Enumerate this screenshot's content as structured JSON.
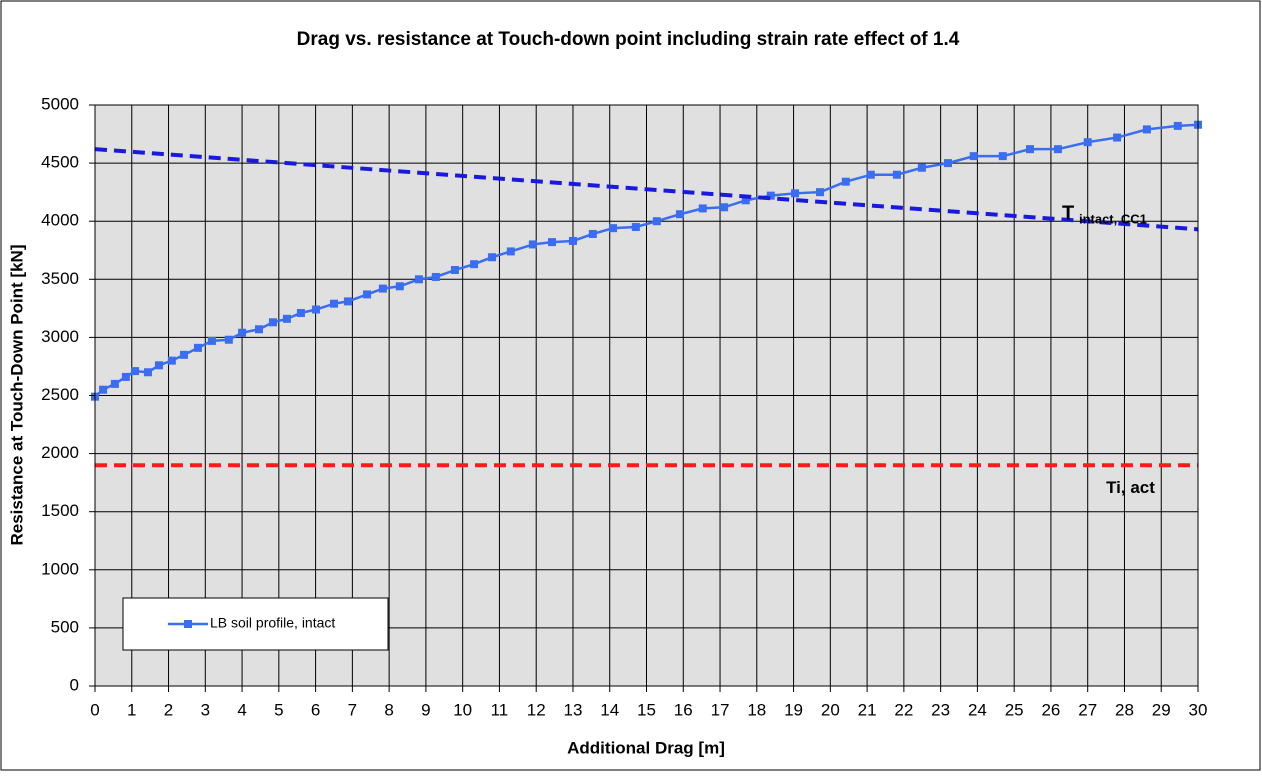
{
  "chart_data": {
    "type": "line",
    "title": "Drag vs. resistance at Touch-down point including strain rate effect of 1.4",
    "x_label": "Additional Drag [m]",
    "y_label": "Resistance at Touch-Down Point [kN]",
    "xlim": [
      0,
      30
    ],
    "ylim": [
      0,
      5000
    ],
    "xticks": [
      0,
      1,
      2,
      3,
      4,
      5,
      6,
      7,
      8,
      9,
      10,
      11,
      12,
      13,
      14,
      15,
      16,
      17,
      18,
      19,
      20,
      21,
      22,
      23,
      24,
      25,
      26,
      27,
      28,
      29,
      30
    ],
    "yticks": [
      0,
      500,
      1000,
      1500,
      2000,
      2500,
      3000,
      3500,
      4000,
      4500,
      5000
    ],
    "grid": true,
    "legend": "lower-left",
    "series": [
      {
        "name": "LB soil profile, intact",
        "color": "#3a6df0",
        "marker": "square",
        "x": [
          0,
          0.22,
          0.54,
          0.84,
          1.09,
          1.44,
          1.74,
          2.09,
          2.42,
          2.8,
          3.18,
          3.64,
          4.0,
          4.46,
          4.84,
          5.22,
          5.6,
          6.01,
          6.5,
          6.88,
          7.4,
          7.83,
          8.29,
          8.81,
          9.27,
          9.79,
          10.31,
          10.8,
          11.31,
          11.91,
          12.43,
          13.0,
          13.54,
          14.09,
          14.71,
          15.28,
          15.91,
          16.53,
          17.11,
          17.7,
          18.38,
          19.04,
          19.72,
          20.42,
          21.1,
          21.81,
          22.49,
          23.2,
          23.9,
          24.69,
          25.43,
          26.19,
          27.0,
          27.8,
          28.61,
          29.45,
          30
        ],
        "values": [
          2490,
          2550,
          2600,
          2660,
          2710,
          2700,
          2760,
          2800,
          2850,
          2910,
          2970,
          2980,
          3040,
          3070,
          3130,
          3160,
          3210,
          3240,
          3290,
          3310,
          3370,
          3420,
          3440,
          3500,
          3520,
          3580,
          3630,
          3690,
          3740,
          3800,
          3820,
          3830,
          3890,
          3940,
          3950,
          4000,
          4060,
          4110,
          4120,
          4180,
          4220,
          4240,
          4250,
          4340,
          4400,
          4400,
          4460,
          4500,
          4560,
          4560,
          4620,
          4620,
          4680,
          4720,
          4790,
          4820,
          4830
        ]
      },
      {
        "color": "#1a1adf",
        "dashed": true,
        "x": [
          0,
          30
        ],
        "values": [
          4620,
          3930
        ]
      },
      {
        "color": "#ff1a1a",
        "dashed": true,
        "x": [
          0,
          30
        ],
        "values": [
          1900,
          1900
        ]
      }
    ],
    "annotations": [
      {
        "text": "T",
        "sub": "intact, CC1",
        "x": 26.3,
        "y": 4060,
        "color": "#1a1adf"
      },
      {
        "text": "Ti, act",
        "x": 27.5,
        "y": 1700,
        "color": "#ff1a1a"
      }
    ]
  }
}
